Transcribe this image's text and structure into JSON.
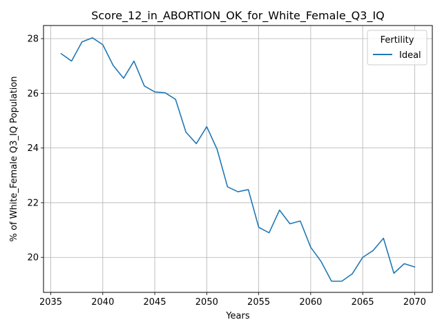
{
  "chart_data": {
    "type": "line",
    "title": "Score_12_in_ABORTION_OK_for_White_Female_Q3_IQ",
    "xlabel": "Years",
    "ylabel": "% of White_Female Q3_IQ Population",
    "xlim": [
      2034.3,
      2071.7
    ],
    "ylim": [
      18.72,
      28.48
    ],
    "x_ticks": [
      2035,
      2040,
      2045,
      2050,
      2055,
      2060,
      2065,
      2070
    ],
    "y_ticks": [
      20,
      22,
      24,
      26,
      28
    ],
    "grid": true,
    "legend": {
      "title": "Fertility",
      "placement": "top-right"
    },
    "series": [
      {
        "name": "Ideal",
        "color": "#1f77b4",
        "x": [
          2036,
          2037,
          2038,
          2039,
          2040,
          2041,
          2042,
          2043,
          2044,
          2045,
          2046,
          2047,
          2048,
          2049,
          2050,
          2051,
          2052,
          2053,
          2054,
          2055,
          2056,
          2057,
          2058,
          2059,
          2060,
          2061,
          2062,
          2063,
          2064,
          2065,
          2066,
          2067,
          2068,
          2069,
          2070
        ],
        "values": [
          27.45,
          27.18,
          27.88,
          28.03,
          27.78,
          27.02,
          26.55,
          27.18,
          26.27,
          26.05,
          26.02,
          25.78,
          24.58,
          24.16,
          24.78,
          23.95,
          22.58,
          22.4,
          22.48,
          21.1,
          20.9,
          21.73,
          21.23,
          21.33,
          20.37,
          19.85,
          19.13,
          19.13,
          19.4,
          20.0,
          20.25,
          20.7,
          19.42,
          19.77,
          19.65
        ]
      }
    ]
  }
}
